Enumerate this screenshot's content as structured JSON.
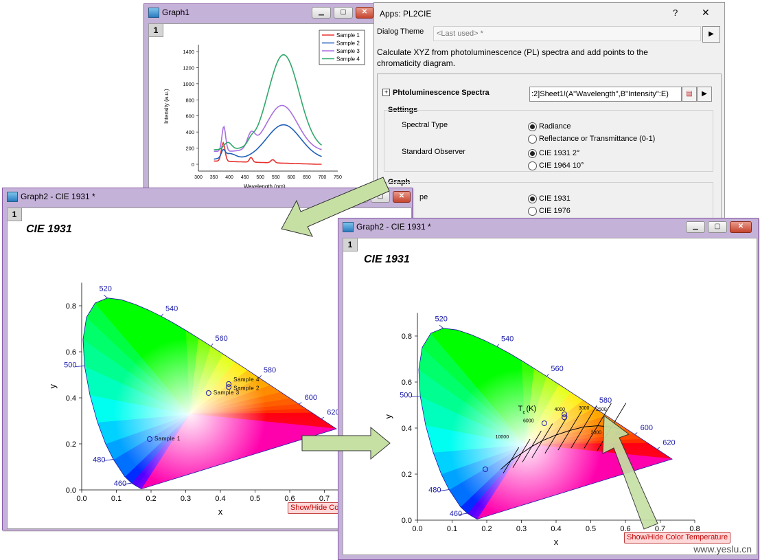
{
  "graph1": {
    "title": "Graph1",
    "layer": "1",
    "legend": [
      "Sample 1",
      "Sample 2",
      "Sample 3",
      "Sample 4"
    ],
    "colors": [
      "#e8322e",
      "#1f5fb8",
      "#a86fe0",
      "#2fa86a"
    ],
    "ylabel": "Intensity (a.u.)",
    "xlabel": "Wavelength (nm)",
    "yticks": [
      "1400",
      "1200",
      "1000",
      "800",
      "600",
      "400",
      "200",
      "0"
    ],
    "xticks": [
      "300",
      "350",
      "400",
      "450",
      "500",
      "550",
      "600",
      "650",
      "700",
      "750"
    ]
  },
  "dialog": {
    "title": "Apps: PL2CIE",
    "help_glyph": "?",
    "close_glyph": "✕",
    "theme_label": "Dialog Theme",
    "theme_value": "<Last used> *",
    "description": "Calculate XYZ from photoluminescence (PL) spectra and add points to the chromaticity diagram.",
    "pl_label": "Phtoluminescence Spectra",
    "pl_value": ":2]Sheet1!(A\"Wavelength\",B\"Intensity\":E)",
    "settings": "Settings",
    "spectral_type": "Spectral Type",
    "radiance": "Radiance",
    "reflectance": "Reflectance or Transmittance (0-1)",
    "observer": "Standard Observer",
    "cie1931_2": "CIE 1931 2°",
    "cie1964_10": "CIE 1964 10°",
    "graph": "Graph",
    "type_label": "pe",
    "cie1931": "CIE 1931",
    "cie1976": "CIE 1976"
  },
  "graph2_left": {
    "title": "Graph2 - CIE 1931 *",
    "layer": "1",
    "chart_title": "CIE 1931",
    "show_btn": "Show/Hide Color Temperature"
  },
  "graph2_right": {
    "title": "Graph2 - CIE 1931 *",
    "layer": "1",
    "chart_title": "CIE 1931",
    "show_btn": "Show/Hide Color Temperature",
    "tc_label": "T",
    "tc_sub": "c",
    "tc_unit": "(K)",
    "cct_labels": [
      "10000",
      "6000",
      "4000",
      "3000",
      "2500",
      "2000",
      "1500"
    ]
  },
  "cie": {
    "xticks": [
      "0.0",
      "0.1",
      "0.2",
      "0.3",
      "0.4",
      "0.5",
      "0.6",
      "0.7",
      "0.8"
    ],
    "yticks": [
      "0.0",
      "0.2",
      "0.4",
      "0.6",
      "0.8"
    ],
    "xlabel": "x",
    "ylabel": "y",
    "wavelengths": [
      "460",
      "480",
      "500",
      "520",
      "540",
      "560",
      "580",
      "600",
      "620"
    ],
    "samples": [
      "Sample 1",
      "Sample 2",
      "Sample 3",
      "Sample 4"
    ],
    "points_xy": [
      [
        0.196,
        0.221
      ],
      [
        0.424,
        0.447
      ],
      [
        0.366,
        0.421
      ],
      [
        0.424,
        0.46
      ]
    ]
  },
  "watermark": "www.yeslu.cn"
}
